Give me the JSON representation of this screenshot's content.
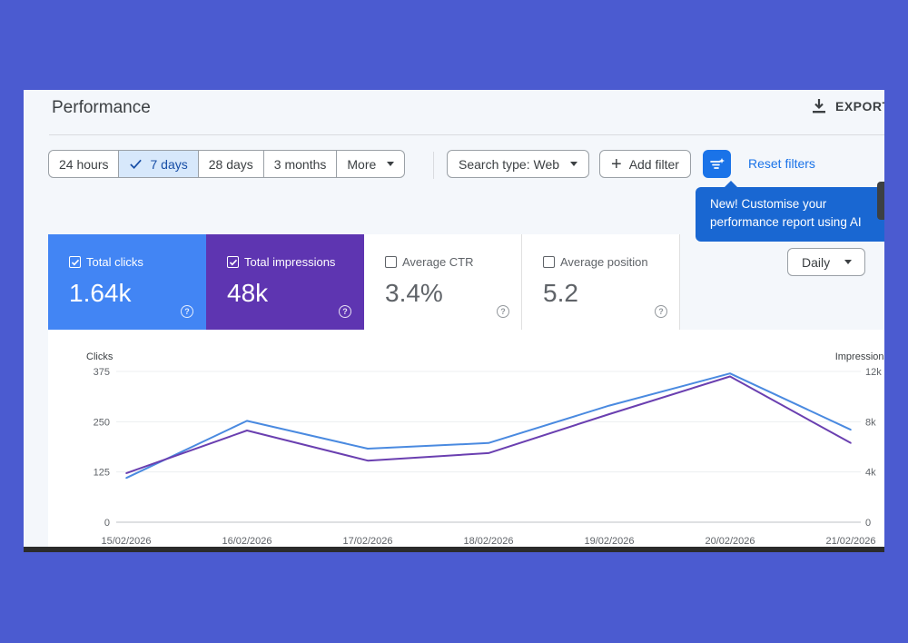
{
  "header": {
    "title": "Performance",
    "export_label": "EXPORT"
  },
  "date_range": {
    "options": [
      {
        "label": "24 hours",
        "active": false
      },
      {
        "label": "7 days",
        "active": true
      },
      {
        "label": "28 days",
        "active": false
      },
      {
        "label": "3 months",
        "active": false
      },
      {
        "label": "More",
        "active": false
      }
    ]
  },
  "filters": {
    "search_type": "Search type: Web",
    "add_filter": "Add filter",
    "reset": "Reset filters",
    "filter_icon": "filter-sparkle-icon"
  },
  "tooltip": {
    "line1": "New! Customise your",
    "line2": "performance report using AI"
  },
  "metrics": [
    {
      "label": "Total clicks",
      "value": "1.64k",
      "checked": true,
      "color": "#4285f4"
    },
    {
      "label": "Total impressions",
      "value": "48k",
      "checked": true,
      "color": "#5e35b1"
    },
    {
      "label": "Average CTR",
      "value": "3.4%",
      "checked": false
    },
    {
      "label": "Average position",
      "value": "5.2",
      "checked": false
    }
  ],
  "granularity": "Daily",
  "colors": {
    "clicks": "#4a8ae0",
    "impressions": "#6a3fb0",
    "accent": "#1a73e8"
  },
  "chart_data": {
    "type": "line",
    "x": [
      "15/02/2026",
      "16/02/2026",
      "17/02/2026",
      "18/02/2026",
      "19/02/2026",
      "20/02/2026",
      "21/02/2026"
    ],
    "series": [
      {
        "name": "Clicks",
        "axis": "left",
        "values": [
          110,
          252,
          183,
          197,
          290,
          370,
          230
        ]
      },
      {
        "name": "Impressions",
        "axis": "right",
        "values": [
          3900,
          7300,
          4900,
          5500,
          8600,
          11600,
          6300
        ]
      }
    ],
    "ylabel_left": "Clicks",
    "ylabel_right": "Impressions",
    "left_ticks": [
      "0",
      "125",
      "250",
      "375"
    ],
    "right_ticks": [
      "0",
      "4k",
      "8k",
      "12k"
    ],
    "ylim_left": [
      0,
      375
    ],
    "ylim_right": [
      0,
      12000
    ],
    "grid": true
  }
}
